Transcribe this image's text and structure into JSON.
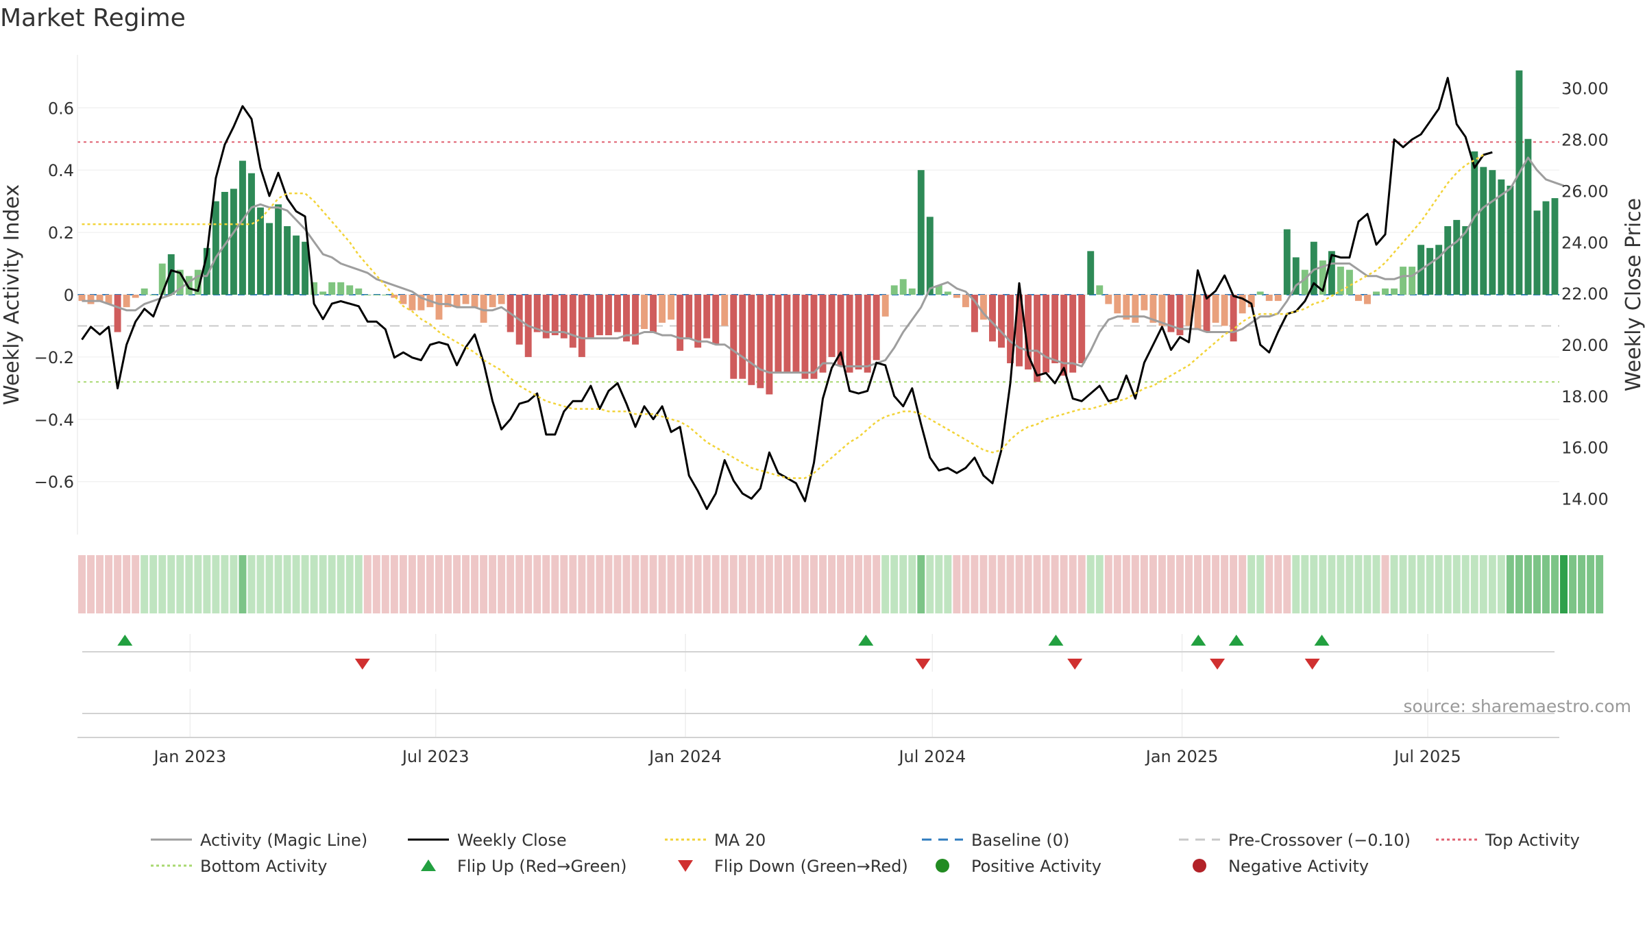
{
  "page": {
    "title": "Market Regime",
    "source": "source: sharemaestro.com"
  },
  "chart_data": {
    "type": "bar",
    "panels": [
      "activity-price",
      "regime-strip",
      "flip-markers",
      "blank-strip"
    ],
    "xlim": [
      "2022-10-10",
      "2025-10-06"
    ],
    "x_ticks": [
      "Jan 2023",
      "Jul 2023",
      "Jan 2024",
      "Jul 2024",
      "Jan 2025",
      "Jul 2025"
    ],
    "x_tick_dates": [
      "2023-01-01",
      "2023-07-01",
      "2024-01-01",
      "2024-07-01",
      "2025-01-01",
      "2025-07-01"
    ],
    "left_axis": {
      "label": "Weekly Activity Index",
      "ylim": [
        -0.77,
        0.77
      ],
      "ticks": [
        "0.6",
        "0.4",
        "0.2",
        "0",
        "−0.2",
        "−0.4",
        "−0.6"
      ],
      "tick_values": [
        0.6,
        0.4,
        0.2,
        0,
        -0.2,
        -0.4,
        -0.6
      ]
    },
    "right_axis": {
      "label": "Weekly Close Price",
      "ylim": [
        12.6,
        31.3
      ],
      "ticks": [
        "30.00",
        "28.00",
        "26.00",
        "24.00",
        "22.00",
        "20.00",
        "18.00",
        "16.00",
        "14.00"
      ],
      "tick_values": [
        30,
        28,
        26,
        24,
        22,
        20,
        18,
        16,
        14
      ]
    },
    "reference_lines": {
      "top_activity": 0.49,
      "bottom_activity": -0.28,
      "pre_crossover": -0.1,
      "baseline": 0
    },
    "activity_bars": [
      -0.02,
      -0.03,
      -0.02,
      -0.03,
      -0.12,
      -0.04,
      -0.01,
      0.02,
      0.0,
      0.1,
      0.13,
      0.08,
      0.06,
      0.08,
      0.15,
      0.3,
      0.33,
      0.34,
      0.43,
      0.39,
      0.28,
      0.23,
      0.29,
      0.22,
      0.19,
      0.17,
      0.04,
      0.01,
      0.04,
      0.04,
      0.03,
      0.02,
      0.0,
      0.0,
      0.0,
      -0.01,
      -0.03,
      -0.05,
      -0.05,
      -0.04,
      -0.08,
      -0.04,
      -0.04,
      -0.03,
      -0.04,
      -0.09,
      -0.04,
      -0.03,
      -0.12,
      -0.16,
      -0.2,
      -0.12,
      -0.14,
      -0.13,
      -0.14,
      -0.17,
      -0.2,
      -0.14,
      -0.13,
      -0.13,
      -0.12,
      -0.15,
      -0.16,
      -0.11,
      -0.12,
      -0.09,
      -0.08,
      -0.18,
      -0.14,
      -0.17,
      -0.14,
      -0.16,
      -0.1,
      -0.27,
      -0.27,
      -0.29,
      -0.3,
      -0.32,
      -0.25,
      -0.25,
      -0.25,
      -0.27,
      -0.27,
      -0.25,
      -0.2,
      -0.23,
      -0.25,
      -0.24,
      -0.25,
      -0.21,
      -0.07,
      0.03,
      0.05,
      0.02,
      0.4,
      0.25,
      0.03,
      0.01,
      -0.01,
      -0.04,
      -0.12,
      -0.08,
      -0.15,
      -0.17,
      -0.22,
      -0.23,
      -0.24,
      -0.28,
      -0.25,
      -0.22,
      -0.26,
      -0.25,
      -0.22,
      0.14,
      0.03,
      -0.03,
      -0.06,
      -0.08,
      -0.09,
      -0.05,
      -0.09,
      -0.1,
      -0.12,
      -0.13,
      -0.1,
      -0.11,
      -0.12,
      -0.09,
      -0.1,
      -0.15,
      -0.06,
      -0.04,
      0.01,
      -0.02,
      -0.02,
      0.21,
      0.12,
      0.08,
      0.17,
      0.11,
      0.14,
      0.09,
      0.08,
      -0.02,
      -0.03,
      0.01,
      0.02,
      0.02,
      0.09,
      0.09,
      0.16,
      0.15,
      0.16,
      0.22,
      0.24,
      0.22,
      0.46,
      0.41,
      0.4,
      0.37,
      0.35,
      0.72,
      0.5,
      0.27,
      0.3,
      0.31
    ],
    "series": [
      {
        "name": "Activity (Magic Line)",
        "axis": "left",
        "color": "#9e9e9e",
        "values": [
          -0.02,
          -0.02,
          -0.02,
          -0.03,
          -0.04,
          -0.05,
          -0.05,
          -0.03,
          -0.02,
          -0.01,
          0.0,
          0.02,
          0.04,
          0.06,
          0.06,
          0.12,
          0.16,
          0.2,
          0.24,
          0.28,
          0.29,
          0.28,
          0.28,
          0.27,
          0.24,
          0.21,
          0.17,
          0.13,
          0.12,
          0.1,
          0.09,
          0.08,
          0.07,
          0.05,
          0.04,
          0.03,
          0.02,
          0.01,
          -0.01,
          -0.02,
          -0.03,
          -0.03,
          -0.04,
          -0.04,
          -0.04,
          -0.05,
          -0.05,
          -0.04,
          -0.06,
          -0.08,
          -0.1,
          -0.11,
          -0.12,
          -0.12,
          -0.12,
          -0.13,
          -0.14,
          -0.14,
          -0.14,
          -0.14,
          -0.14,
          -0.13,
          -0.13,
          -0.12,
          -0.12,
          -0.13,
          -0.13,
          -0.14,
          -0.14,
          -0.15,
          -0.15,
          -0.16,
          -0.16,
          -0.18,
          -0.2,
          -0.22,
          -0.24,
          -0.25,
          -0.25,
          -0.25,
          -0.25,
          -0.25,
          -0.25,
          -0.22,
          -0.22,
          -0.23,
          -0.23,
          -0.23,
          -0.23,
          -0.22,
          -0.21,
          -0.17,
          -0.12,
          -0.08,
          -0.04,
          0.02,
          0.03,
          0.04,
          0.02,
          0.01,
          -0.02,
          -0.06,
          -0.09,
          -0.12,
          -0.15,
          -0.17,
          -0.18,
          -0.18,
          -0.2,
          -0.21,
          -0.22,
          -0.22,
          -0.23,
          -0.18,
          -0.12,
          -0.08,
          -0.07,
          -0.07,
          -0.07,
          -0.07,
          -0.08,
          -0.09,
          -0.1,
          -0.11,
          -0.11,
          -0.11,
          -0.12,
          -0.12,
          -0.12,
          -0.12,
          -0.11,
          -0.09,
          -0.07,
          -0.07,
          -0.06,
          -0.02,
          0.03,
          0.05,
          0.08,
          0.09,
          0.1,
          0.1,
          0.1,
          0.08,
          0.06,
          0.06,
          0.05,
          0.05,
          0.06,
          0.06,
          0.08,
          0.1,
          0.12,
          0.15,
          0.17,
          0.2,
          0.25,
          0.28,
          0.3,
          0.32,
          0.34,
          0.39,
          0.44,
          0.4,
          0.37,
          0.36,
          0.35
        ]
      },
      {
        "name": "Weekly Close",
        "axis": "right",
        "color": "#000000",
        "values": [
          20.2,
          20.7,
          20.4,
          20.7,
          18.3,
          20.0,
          20.9,
          21.4,
          21.1,
          22.0,
          22.9,
          22.8,
          22.2,
          22.1,
          23.5,
          26.5,
          27.8,
          28.5,
          29.3,
          28.8,
          26.9,
          25.8,
          26.7,
          25.7,
          25.2,
          25.0,
          21.6,
          21.0,
          21.6,
          21.7,
          21.6,
          21.5,
          20.9,
          20.9,
          20.6,
          19.5,
          19.7,
          19.5,
          19.4,
          20.0,
          20.1,
          20.0,
          19.2,
          19.9,
          20.4,
          19.3,
          17.8,
          16.7,
          17.1,
          17.7,
          17.8,
          18.1,
          16.5,
          16.5,
          17.4,
          17.8,
          17.8,
          18.4,
          17.5,
          18.2,
          18.5,
          17.7,
          16.8,
          17.6,
          17.1,
          17.6,
          16.6,
          16.8,
          14.9,
          14.3,
          13.6,
          14.2,
          15.5,
          14.7,
          14.2,
          14.0,
          14.4,
          15.8,
          15.0,
          14.8,
          14.6,
          13.9,
          15.4,
          17.9,
          19.1,
          19.7,
          18.2,
          18.1,
          18.2,
          19.3,
          19.2,
          18.0,
          17.6,
          18.3,
          16.9,
          15.6,
          15.1,
          15.2,
          15.0,
          15.2,
          15.6,
          14.9,
          14.6,
          15.9,
          18.5,
          22.4,
          19.6,
          18.8,
          18.9,
          18.5,
          19.1,
          17.9,
          17.8,
          18.1,
          18.4,
          17.8,
          17.9,
          18.8,
          17.9,
          19.3,
          20.0,
          20.7,
          19.8,
          20.3,
          20.1,
          22.9,
          21.8,
          22.1,
          22.7,
          21.9,
          21.8,
          21.6,
          20.0,
          19.7,
          20.5,
          21.2,
          21.3,
          21.7,
          22.4,
          22.1,
          23.5,
          23.4,
          23.4,
          24.8,
          25.1,
          23.9,
          24.3,
          28.0,
          27.7,
          28.0,
          28.2,
          28.7,
          29.2,
          30.4,
          28.6,
          28.1,
          26.9,
          27.4,
          27.5
        ]
      },
      {
        "name": "MA 20",
        "axis": "right",
        "color": "#f2d338",
        "values": [
          24.7,
          24.7,
          24.7,
          24.7,
          24.7,
          24.7,
          24.7,
          24.7,
          24.7,
          24.7,
          24.7,
          24.7,
          24.7,
          24.7,
          24.7,
          24.7,
          24.7,
          24.7,
          24.7,
          24.7,
          24.9,
          25.3,
          25.7,
          25.9,
          25.9,
          25.9,
          25.6,
          25.2,
          24.8,
          24.4,
          24.0,
          23.5,
          23.1,
          22.7,
          22.3,
          21.9,
          21.5,
          21.3,
          21.0,
          20.8,
          20.5,
          20.3,
          20.1,
          19.9,
          19.7,
          19.4,
          19.2,
          19.0,
          18.7,
          18.4,
          18.2,
          18.0,
          17.8,
          17.7,
          17.6,
          17.5,
          17.5,
          17.5,
          17.5,
          17.4,
          17.4,
          17.4,
          17.3,
          17.3,
          17.3,
          17.2,
          17.1,
          17.0,
          16.8,
          16.5,
          16.2,
          16.0,
          15.8,
          15.6,
          15.4,
          15.2,
          15.1,
          15.0,
          14.9,
          14.8,
          14.8,
          14.8,
          15.0,
          15.3,
          15.6,
          15.9,
          16.2,
          16.4,
          16.7,
          17.0,
          17.2,
          17.3,
          17.4,
          17.4,
          17.3,
          17.1,
          16.9,
          16.7,
          16.5,
          16.3,
          16.1,
          15.9,
          15.8,
          15.9,
          16.3,
          16.6,
          16.8,
          16.9,
          17.1,
          17.2,
          17.3,
          17.4,
          17.5,
          17.5,
          17.6,
          17.7,
          17.8,
          17.9,
          18.1,
          18.3,
          18.4,
          18.6,
          18.8,
          19.0,
          19.2,
          19.5,
          19.8,
          20.1,
          20.4,
          20.6,
          20.9,
          21.1,
          21.2,
          21.2,
          21.2,
          21.2,
          21.3,
          21.4,
          21.6,
          21.7,
          21.9,
          22.1,
          22.3,
          22.5,
          22.7,
          22.9,
          23.2,
          23.6,
          24.0,
          24.4,
          24.8,
          25.3,
          25.8,
          26.3,
          26.7,
          27.0,
          27.2,
          27.4
        ]
      }
    ],
    "regime_strip": [
      -1,
      -1,
      -1,
      -1,
      -1,
      -1,
      -1,
      1,
      1,
      1,
      1,
      1,
      1,
      1,
      1,
      1,
      1,
      1,
      2,
      1,
      1,
      1,
      1,
      1,
      1,
      1,
      1,
      1,
      1,
      1,
      1,
      1,
      -1,
      -1,
      -1,
      -1,
      -1,
      -1,
      -1,
      -1,
      -1,
      -1,
      -1,
      -1,
      -1,
      -1,
      -1,
      -1,
      -1,
      -1,
      -1,
      -1,
      -1,
      -1,
      -1,
      -1,
      -1,
      -1,
      -1,
      -1,
      -1,
      -1,
      -1,
      -1,
      -1,
      -1,
      -1,
      -1,
      -1,
      -1,
      -1,
      -1,
      -1,
      -1,
      -1,
      -1,
      -1,
      -1,
      -1,
      -1,
      -1,
      -1,
      -1,
      -1,
      -1,
      -1,
      -1,
      -1,
      -1,
      -1,
      1,
      1,
      1,
      1,
      2,
      1,
      1,
      1,
      -1,
      -1,
      -1,
      -1,
      -1,
      -1,
      -1,
      -1,
      -1,
      -1,
      -1,
      -1,
      -1,
      -1,
      -1,
      1,
      1,
      -1,
      -1,
      -1,
      -1,
      -1,
      -1,
      -1,
      -1,
      -1,
      -1,
      -1,
      -1,
      -1,
      -1,
      -1,
      -1,
      1,
      1,
      -1,
      -1,
      -1,
      1,
      1,
      1,
      1,
      1,
      1,
      1,
      1,
      1,
      1,
      -1,
      1,
      1,
      1,
      1,
      1,
      1,
      1,
      1,
      1,
      1,
      1,
      1,
      1,
      2,
      2,
      2,
      2,
      2,
      2,
      3,
      2,
      2,
      2,
      2
    ],
    "flip_up": [
      "2022-11-14",
      "2024-05-13",
      "2024-09-30",
      "2025-01-13",
      "2025-02-10",
      "2025-04-14"
    ],
    "flip_down": [
      "2023-05-08",
      "2024-06-24",
      "2024-10-14",
      "2025-01-27",
      "2025-04-07"
    ],
    "legend": [
      {
        "label": "Activity (Magic Line)",
        "kind": "line",
        "color": "#9e9e9e"
      },
      {
        "label": "Weekly Close",
        "kind": "line",
        "color": "#000000"
      },
      {
        "label": "MA 20",
        "kind": "dotted",
        "color": "#f2d338"
      },
      {
        "label": "Baseline (0)",
        "kind": "dashed",
        "color": "#2f7cbf"
      },
      {
        "label": "Pre-Crossover (−0.10)",
        "kind": "dashed",
        "color": "#c8c8c8"
      },
      {
        "label": "Top Activity",
        "kind": "dotted",
        "color": "#e06070"
      },
      {
        "label": "Bottom Activity",
        "kind": "dotted",
        "color": "#a8d870"
      },
      {
        "label": "Flip Up (Red→Green)",
        "kind": "tri-up",
        "color": "#22a040"
      },
      {
        "label": "Flip Down (Green→Red)",
        "kind": "tri-down",
        "color": "#d03030"
      },
      {
        "label": "Positive Activity",
        "kind": "dot",
        "color": "#228b22"
      },
      {
        "label": "Negative Activity",
        "kind": "dot",
        "color": "#b22228"
      }
    ]
  }
}
